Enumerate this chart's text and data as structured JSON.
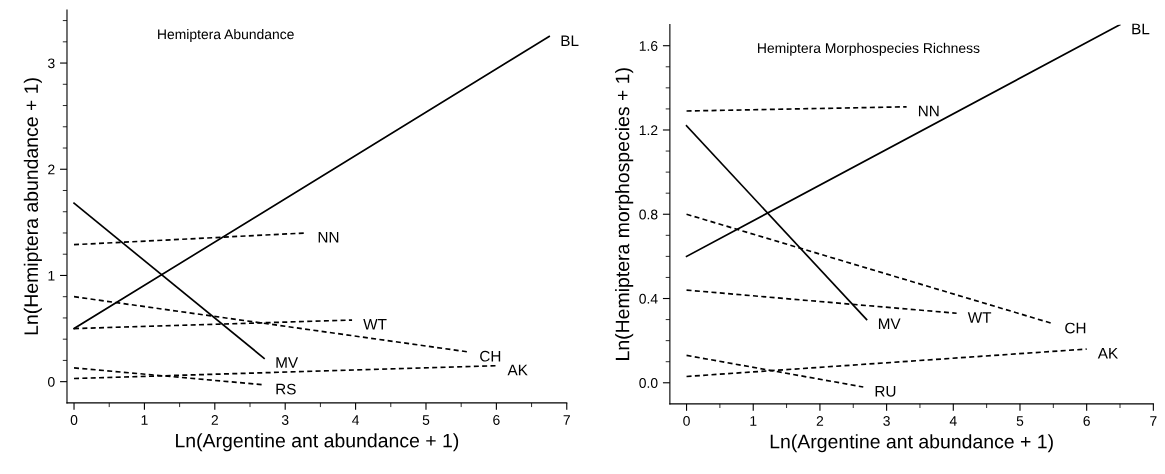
{
  "chart_data": [
    {
      "type": "line",
      "title": "Hemiptera Abundance",
      "xlabel": "Ln(Argentine ant abundance + 1)",
      "ylabel": "Ln(Hemiptera abundance + 1)",
      "xlim": [
        -0.1,
        7
      ],
      "ylim": [
        -0.2,
        3.5
      ],
      "xticks": [
        0,
        {
          "value": 0.5,
          "label": null
        },
        1,
        {
          "value": 1.5,
          "label": null
        },
        2,
        {
          "value": 2.5,
          "label": null
        },
        3,
        {
          "value": 3.5,
          "label": null
        },
        4,
        {
          "value": 4.5,
          "label": null
        },
        5,
        {
          "value": 5.5,
          "label": null
        },
        6,
        {
          "value": 6.5,
          "label": null
        },
        7
      ],
      "yticks": [
        0,
        {
          "value": 0.2,
          "label": null
        },
        {
          "value": 0.4,
          "label": null
        },
        {
          "value": 0.6,
          "label": null
        },
        {
          "value": 0.8,
          "label": null
        },
        1,
        {
          "value": 1.2,
          "label": null
        },
        {
          "value": 1.4,
          "label": null
        },
        {
          "value": 1.6,
          "label": null
        },
        {
          "value": 1.8,
          "label": null
        },
        2,
        {
          "value": 2.2,
          "label": null
        },
        {
          "value": 2.4,
          "label": null
        },
        {
          "value": 2.6,
          "label": null
        },
        {
          "value": 2.8,
          "label": null
        },
        3,
        {
          "value": 3.2,
          "label": null
        },
        {
          "value": 3.4,
          "label": null
        }
      ],
      "grid": false,
      "legend": false,
      "series": [
        {
          "name": "BL",
          "color": "#000000",
          "line_style": "solid",
          "x": [
            0,
            6.75
          ],
          "values": [
            0.5,
            3.25
          ]
        },
        {
          "name": "MV",
          "color": "#000000",
          "line_style": "solid",
          "x": [
            0,
            2.7
          ],
          "values": [
            1.68,
            0.22
          ]
        },
        {
          "name": "NN",
          "color": "#000000",
          "line_style": "dashed",
          "x": [
            0,
            3.3
          ],
          "values": [
            1.29,
            1.4
          ]
        },
        {
          "name": "WT",
          "color": "#000000",
          "line_style": "dashed",
          "x": [
            0,
            3.95
          ],
          "values": [
            0.5,
            0.58
          ]
        },
        {
          "name": "CH",
          "color": "#000000",
          "line_style": "dashed",
          "x": [
            0,
            5.6
          ],
          "values": [
            0.8,
            0.28
          ]
        },
        {
          "name": "AK",
          "color": "#000000",
          "line_style": "dashed",
          "x": [
            0,
            6.0
          ],
          "values": [
            0.03,
            0.15
          ]
        },
        {
          "name": "RS",
          "color": "#000000",
          "line_style": "dashed",
          "x": [
            0,
            2.7
          ],
          "values": [
            0.13,
            -0.03
          ]
        }
      ]
    },
    {
      "type": "line",
      "title": "Hemiptera Morphospecies Richness",
      "xlabel": "Ln(Argentine ant abundance + 1)",
      "ylabel": "Ln(Hemiptera morphospecies + 1)",
      "xlim": [
        -0.25,
        7
      ],
      "ylim": [
        -0.1,
        1.7
      ],
      "xticks": [
        0,
        {
          "value": 0.5,
          "label": null
        },
        1,
        {
          "value": 1.5,
          "label": null
        },
        2,
        {
          "value": 2.5,
          "label": null
        },
        3,
        {
          "value": 3.5,
          "label": null
        },
        4,
        {
          "value": 4.5,
          "label": null
        },
        5,
        {
          "value": 5.5,
          "label": null
        },
        6,
        {
          "value": 6.5,
          "label": null
        },
        7
      ],
      "yticks": [
        {
          "value": 0,
          "label": "0.0"
        },
        {
          "value": 0.1,
          "label": null
        },
        {
          "value": 0.2,
          "label": null
        },
        {
          "value": 0.3,
          "label": null
        },
        0.4,
        {
          "value": 0.5,
          "label": null
        },
        {
          "value": 0.6,
          "label": null
        },
        {
          "value": 0.7,
          "label": null
        },
        0.8,
        {
          "value": 0.9,
          "label": null
        },
        {
          "value": 1.0,
          "label": null
        },
        {
          "value": 1.1,
          "label": null
        },
        1.2,
        {
          "value": 1.3,
          "label": null
        },
        {
          "value": 1.4,
          "label": null
        },
        {
          "value": 1.5,
          "label": null
        },
        1.6
      ],
      "grid": false,
      "legend": false,
      "series": [
        {
          "name": "BL",
          "color": "#000000",
          "line_style": "solid",
          "x": [
            0,
            6.5
          ],
          "values": [
            0.6,
            1.7
          ]
        },
        {
          "name": "MV",
          "color": "#000000",
          "line_style": "solid",
          "x": [
            0,
            2.7
          ],
          "values": [
            1.22,
            0.3
          ]
        },
        {
          "name": "NN",
          "color": "#000000",
          "line_style": "dashed",
          "x": [
            0,
            3.3
          ],
          "values": [
            1.29,
            1.31
          ]
        },
        {
          "name": "WT",
          "color": "#000000",
          "line_style": "dashed",
          "x": [
            0,
            4.05
          ],
          "values": [
            0.44,
            0.33
          ]
        },
        {
          "name": "CH",
          "color": "#000000",
          "line_style": "dashed",
          "x": [
            0,
            5.5
          ],
          "values": [
            0.8,
            0.28
          ]
        },
        {
          "name": "AK",
          "color": "#000000",
          "line_style": "dashed",
          "x": [
            0,
            6.0
          ],
          "values": [
            0.03,
            0.16
          ]
        },
        {
          "name": "RU",
          "color": "#000000",
          "line_style": "dashed",
          "x": [
            0,
            2.65
          ],
          "values": [
            0.13,
            -0.02
          ]
        }
      ]
    }
  ]
}
